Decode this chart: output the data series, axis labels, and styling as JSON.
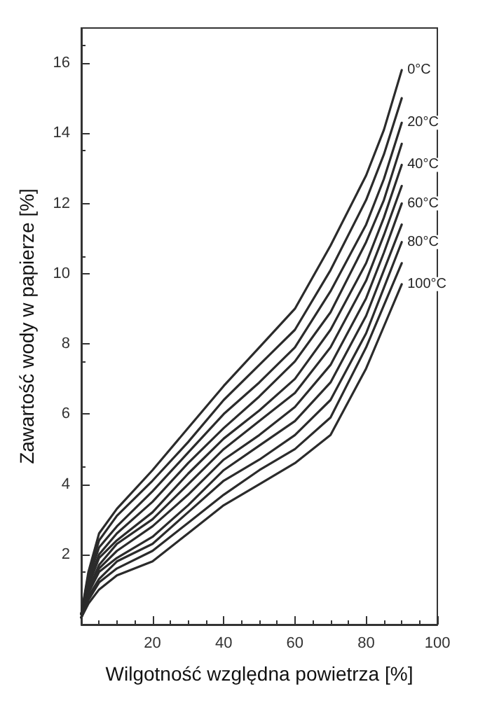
{
  "chart_data": {
    "type": "line",
    "xlabel": "Wilgotność względna powietrza [%]",
    "ylabel": "Zawartość wody w papierze [%]",
    "x": [
      0,
      2,
      5,
      10,
      20,
      30,
      40,
      50,
      60,
      70,
      80,
      85,
      90
    ],
    "xlim": [
      0,
      100
    ],
    "xticks": [
      {
        "value": 0,
        "label": null
      },
      20,
      40,
      60,
      80,
      100
    ],
    "ylim": [
      0,
      17
    ],
    "yticks": [
      {
        "value": 0,
        "label": null
      },
      2,
      4,
      6,
      8,
      10,
      12,
      14,
      16
    ],
    "grid": false,
    "legend": false,
    "marker": "none",
    "line_style": "solid",
    "series": [
      {
        "name": "0°C",
        "color": "#2b2b2b",
        "values": [
          0.3,
          1.5,
          2.6,
          3.3,
          4.4,
          5.6,
          6.8,
          7.9,
          9.0,
          10.8,
          12.8,
          14.1,
          15.8
        ]
      },
      {
        "color": "#2b2b2b",
        "values": [
          0.3,
          1.4,
          2.4,
          3.1,
          4.1,
          5.2,
          6.4,
          7.4,
          8.4,
          10.1,
          12.1,
          13.4,
          15.0
        ]
      },
      {
        "name": "20°C",
        "color": "#2b2b2b",
        "values": [
          0.3,
          1.3,
          2.2,
          2.8,
          3.8,
          4.9,
          6.0,
          6.9,
          7.9,
          9.5,
          11.4,
          12.7,
          14.3
        ]
      },
      {
        "color": "#2b2b2b",
        "values": [
          0.3,
          1.2,
          2.0,
          2.6,
          3.5,
          4.6,
          5.6,
          6.5,
          7.5,
          8.9,
          10.9,
          12.1,
          13.7
        ]
      },
      {
        "name": "40°C",
        "color": "#2b2b2b",
        "values": [
          0.3,
          1.1,
          1.9,
          2.4,
          3.2,
          4.3,
          5.3,
          6.1,
          7.0,
          8.4,
          10.3,
          11.6,
          13.1
        ]
      },
      {
        "color": "#2b2b2b",
        "values": [
          0.3,
          1.0,
          1.7,
          2.3,
          3.0,
          4.0,
          5.0,
          5.8,
          6.6,
          7.9,
          9.8,
          11.1,
          12.5
        ]
      },
      {
        "name": "60°C",
        "color": "#2b2b2b",
        "values": [
          0.2,
          0.9,
          1.6,
          2.1,
          2.8,
          3.7,
          4.7,
          5.4,
          6.2,
          7.4,
          9.3,
          10.6,
          12.0
        ]
      },
      {
        "color": "#2b2b2b",
        "values": [
          0.2,
          0.9,
          1.5,
          1.9,
          2.5,
          3.4,
          4.4,
          5.1,
          5.8,
          6.9,
          8.8,
          10.1,
          11.4
        ]
      },
      {
        "name": "80°C",
        "color": "#2b2b2b",
        "values": [
          0.2,
          0.8,
          1.3,
          1.8,
          2.3,
          3.2,
          4.1,
          4.7,
          5.4,
          6.4,
          8.3,
          9.6,
          10.9
        ]
      },
      {
        "color": "#2b2b2b",
        "values": [
          0.2,
          0.7,
          1.2,
          1.6,
          2.1,
          2.9,
          3.7,
          4.4,
          5.0,
          5.9,
          7.9,
          9.1,
          10.3
        ]
      },
      {
        "name": "100°C",
        "color": "#2b2b2b",
        "values": [
          0.2,
          0.6,
          1.0,
          1.4,
          1.8,
          2.6,
          3.4,
          4.0,
          4.6,
          5.4,
          7.3,
          8.5,
          9.7
        ]
      }
    ]
  }
}
